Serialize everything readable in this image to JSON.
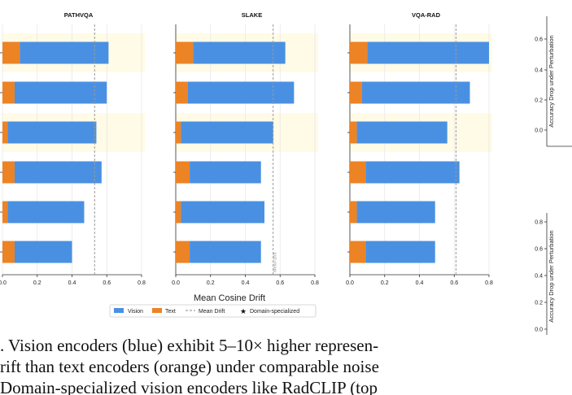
{
  "legend": {
    "vision": "Vision",
    "text": "Text",
    "mean_drift": "Mean Drift",
    "domain_specialized": "Domain-specialized"
  },
  "colors": {
    "vision": "#4a90e2",
    "text": "#ec8325",
    "mean_line": "#999999",
    "highlight": "#fffbe6"
  },
  "shared_xlabel": "Mean Cosine Drift",
  "chart_data": [
    {
      "type": "bar",
      "title": "PATHVQA",
      "xlim": [
        0,
        0.8
      ],
      "x_ticks": [
        "0.0",
        "0.2",
        "0.4",
        "0.6",
        "0.8"
      ],
      "stacked": true,
      "orientation": "horizontal",
      "series": [
        {
          "name": "Text",
          "values": [
            0.1,
            0.07,
            0.03,
            0.07,
            0.03,
            0.07
          ]
        },
        {
          "name": "Vision",
          "values": [
            0.51,
            0.53,
            0.51,
            0.5,
            0.44,
            0.33
          ]
        }
      ],
      "mean_drift": 0.53,
      "highlighted_rows": [
        0,
        2
      ]
    },
    {
      "type": "bar",
      "title": "SLAKE",
      "xlim": [
        0,
        0.8
      ],
      "x_ticks": [
        "0.0",
        "0.2",
        "0.4",
        "0.6",
        "0.8"
      ],
      "stacked": true,
      "orientation": "horizontal",
      "series": [
        {
          "name": "Text",
          "values": [
            0.1,
            0.07,
            0.03,
            0.08,
            0.03,
            0.08
          ]
        },
        {
          "name": "Vision",
          "values": [
            0.53,
            0.61,
            0.53,
            0.41,
            0.48,
            0.41
          ]
        }
      ],
      "mean_drift": 0.56,
      "mean_label": "Mean drift",
      "highlighted_rows": [
        0,
        2
      ]
    },
    {
      "type": "bar",
      "title": "VQA-RAD",
      "xlim": [
        0,
        0.8
      ],
      "x_ticks": [
        "0.0",
        "0.2",
        "0.4",
        "0.6",
        "0.8"
      ],
      "stacked": true,
      "orientation": "horizontal",
      "series": [
        {
          "name": "Text",
          "values": [
            0.1,
            0.07,
            0.04,
            0.09,
            0.04,
            0.09
          ]
        },
        {
          "name": "Vision",
          "values": [
            0.7,
            0.62,
            0.52,
            0.54,
            0.45,
            0.4
          ]
        }
      ],
      "mean_drift": 0.61,
      "highlighted_rows": [
        0,
        2
      ]
    },
    {
      "type": "bar",
      "ylabel": "Accuracy Drop under Perturbation",
      "y_ticks": [
        "0.0",
        "0.2",
        "0.4",
        "0.6"
      ]
    },
    {
      "type": "bar",
      "ylabel": "Accuracy Drop under Perturbation",
      "y_ticks": [
        "0.0",
        "0.2",
        "0.4",
        "0.6",
        "0.8"
      ]
    }
  ],
  "caption": {
    "line1": ". Vision encoders (blue) exhibit 5–10× higher represen-",
    "line2": "rift than text encoders (orange) under comparable noise",
    "line3": "Domain-specialized vision encoders like RadCLIP (top"
  }
}
